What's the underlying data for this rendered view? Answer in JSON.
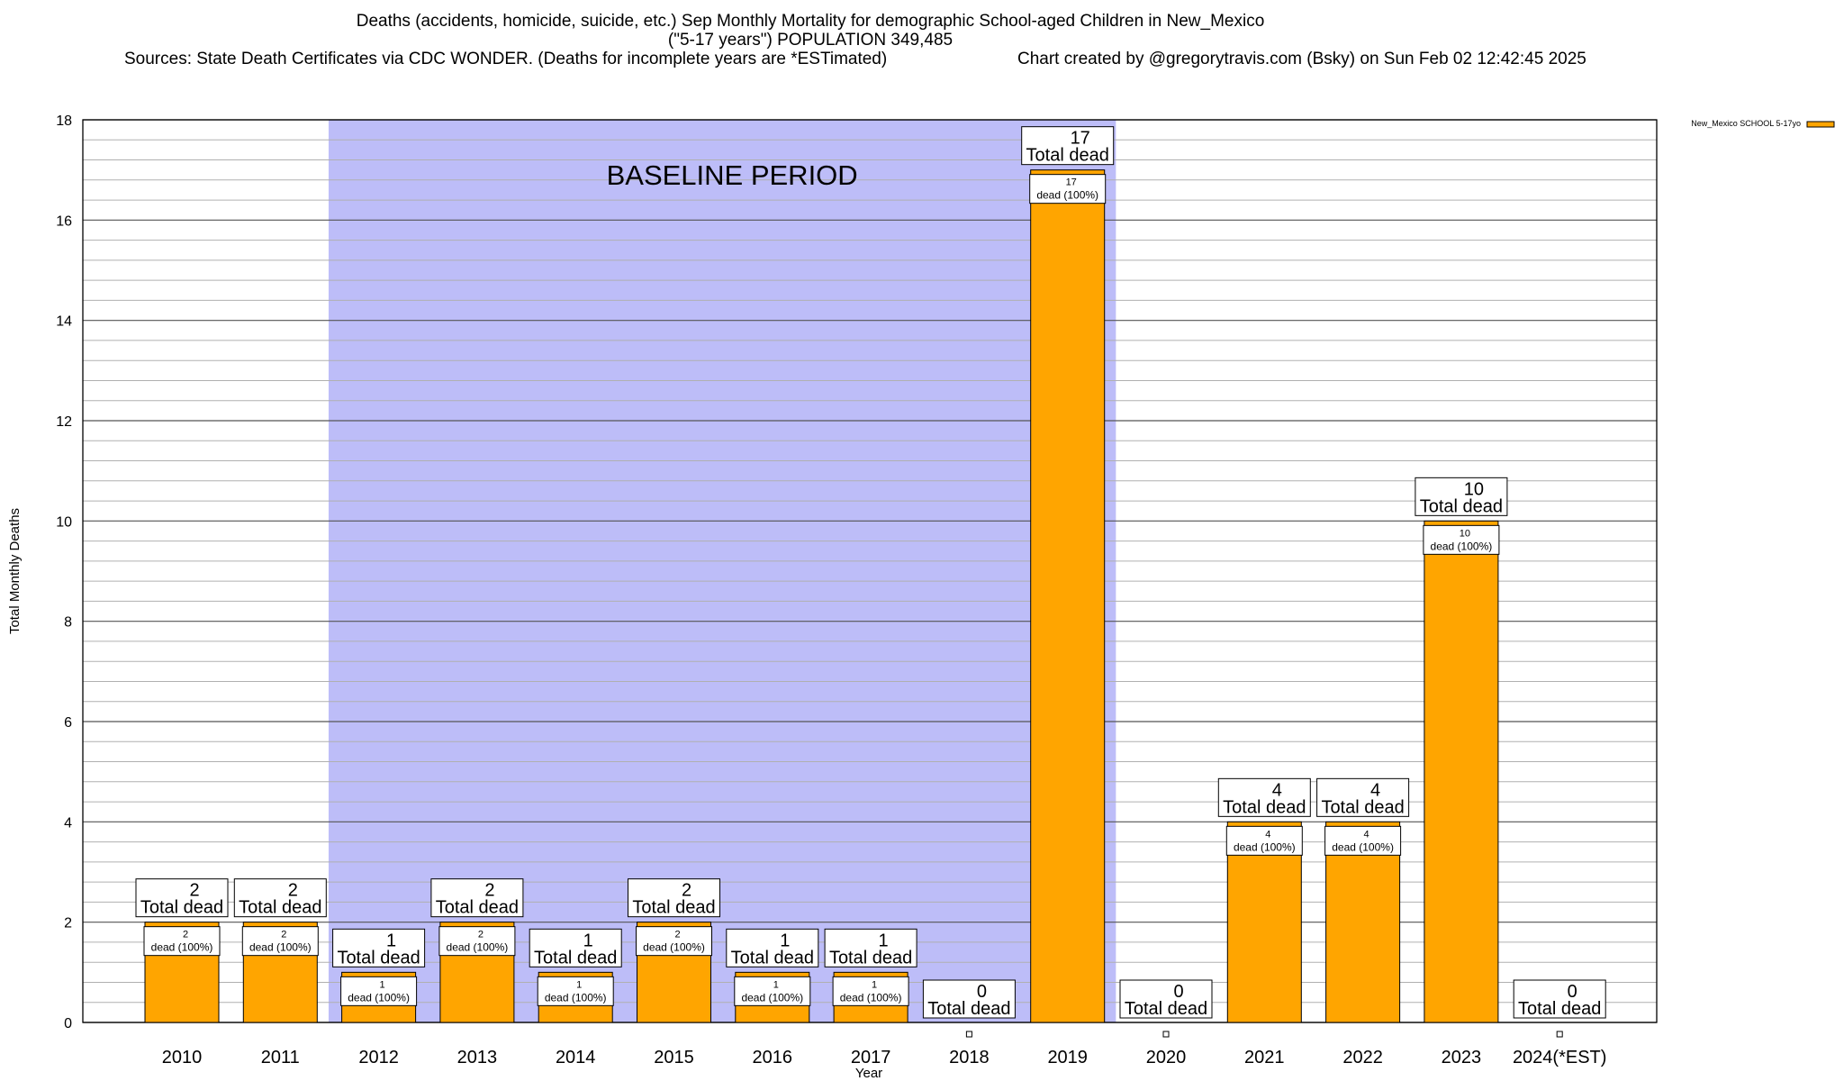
{
  "header": {
    "title_line1": "Deaths (accidents, homicide, suicide, etc.) Sep Monthly Mortality for demographic School-aged Children in New_Mexico",
    "title_line2": "(\"5-17 years\") POPULATION 349,485",
    "sources": "Sources: State Death Certificates via CDC WONDER. (Deaths for incomplete years are *ESTimated)",
    "credit": "Chart created by @gregorytravis.com (Bsky) on Sun Feb 02 12:42:45 2025"
  },
  "colors": {
    "bar": "#ffa500",
    "baseline_shade": "#bdbdf8",
    "grid": "#b0b0b0"
  },
  "chart_data": {
    "type": "bar",
    "title": "Deaths (accidents, homicide, suicide, etc.) Sep Monthly Mortality for demographic School-aged Children in New_Mexico",
    "xlabel": "Year",
    "ylabel": "Total Monthly Deaths",
    "ylim": [
      0,
      18
    ],
    "yticks": [
      0,
      2,
      4,
      6,
      8,
      10,
      12,
      14,
      16,
      18
    ],
    "grid": true,
    "legend_position": "top-right",
    "categories": [
      "2010",
      "2011",
      "2012",
      "2013",
      "2014",
      "2015",
      "2016",
      "2017",
      "2018",
      "2019",
      "2020",
      "2021",
      "2022",
      "2023",
      "2024(*EST)"
    ],
    "series": [
      {
        "name": "New_Mexico SCHOOL 5-17yo",
        "values": [
          2,
          2,
          1,
          2,
          1,
          2,
          1,
          1,
          0,
          17,
          0,
          4,
          4,
          10,
          0
        ]
      }
    ],
    "total_label_suffix": "Total dead",
    "inner_label_suffix": "dead (100%)",
    "annotation": {
      "text": "BASELINE PERIOD",
      "from_category": "2012",
      "to_category": "2019"
    }
  }
}
